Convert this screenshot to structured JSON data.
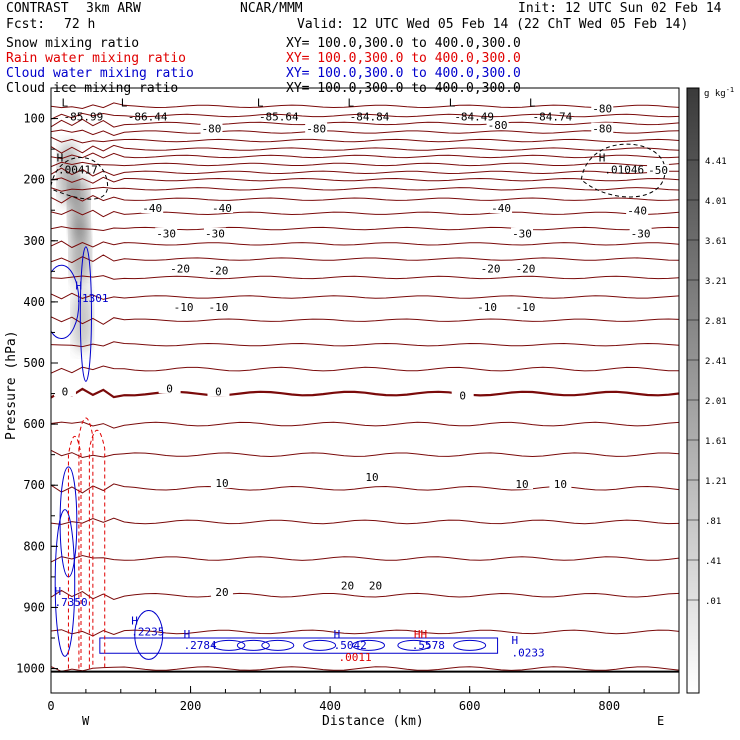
{
  "header": {
    "project": "CONTRAST",
    "model": "3km ARW",
    "center": "NCAR/MMM",
    "init": "Init: 12 UTC Sun 02 Feb 14",
    "fcst_label": "Fcst:",
    "fcst_value": "72 h",
    "valid": "Valid: 12 UTC Wed 05 Feb 14 (22 ChT Wed 05 Feb 14)"
  },
  "fields": [
    {
      "name": "Snow mixing ratio",
      "xy": "XY= 100.0,300.0 to 400.0,300.0",
      "color": "#000000"
    },
    {
      "name": "Rain water mixing ratio",
      "xy": "XY= 100.0,300.0 to 400.0,300.0",
      "color": "#e00000"
    },
    {
      "name": "Cloud water mixing ratio",
      "xy": "XY= 100.0,300.0 to 400.0,300.0",
      "color": "#0000cc"
    },
    {
      "name": "Cloud ice mixing ratio",
      "xy": "XY= 100.0,300.0 to 400.0,300.0",
      "color": "#000000"
    }
  ],
  "chart_data": {
    "type": "cross-section contour",
    "xlabel": "Distance (km)",
    "ylabel": "Pressure (hPa)",
    "xlim": [
      0,
      900
    ],
    "ylim": [
      1040,
      50
    ],
    "xticks": [
      0,
      200,
      400,
      600,
      800
    ],
    "yticks": [
      100,
      200,
      300,
      400,
      500,
      600,
      700,
      800,
      900,
      1000
    ],
    "x_end_labels": {
      "left": "W",
      "right": "E"
    },
    "temperature_labels": [
      {
        "x": 230,
        "p": 118,
        "text": "-80"
      },
      {
        "x": 380,
        "p": 118,
        "text": "-80"
      },
      {
        "x": 640,
        "p": 112,
        "text": "-80"
      },
      {
        "x": 790,
        "p": 85,
        "text": "-80"
      },
      {
        "x": 790,
        "p": 118,
        "text": "-80"
      },
      {
        "x": 870,
        "p": 186,
        "text": "-50"
      },
      {
        "x": 145,
        "p": 248,
        "text": "-40"
      },
      {
        "x": 245,
        "p": 248,
        "text": "-40"
      },
      {
        "x": 645,
        "p": 248,
        "text": "-40"
      },
      {
        "x": 840,
        "p": 252,
        "text": "-40"
      },
      {
        "x": 165,
        "p": 290,
        "text": "-30"
      },
      {
        "x": 235,
        "p": 290,
        "text": "-30"
      },
      {
        "x": 675,
        "p": 290,
        "text": "-30"
      },
      {
        "x": 845,
        "p": 290,
        "text": "-30"
      },
      {
        "x": 185,
        "p": 347,
        "text": "-20"
      },
      {
        "x": 240,
        "p": 350,
        "text": "-20"
      },
      {
        "x": 630,
        "p": 347,
        "text": "-20"
      },
      {
        "x": 680,
        "p": 347,
        "text": "-20"
      },
      {
        "x": 190,
        "p": 410,
        "text": "-10"
      },
      {
        "x": 240,
        "p": 410,
        "text": "-10"
      },
      {
        "x": 625,
        "p": 410,
        "text": "-10"
      },
      {
        "x": 680,
        "p": 410,
        "text": "-10"
      },
      {
        "x": 20,
        "p": 548,
        "text": "0"
      },
      {
        "x": 170,
        "p": 543,
        "text": "0"
      },
      {
        "x": 240,
        "p": 548,
        "text": "0"
      },
      {
        "x": 590,
        "p": 555,
        "text": "0"
      },
      {
        "x": 245,
        "p": 698,
        "text": "10"
      },
      {
        "x": 460,
        "p": 688,
        "text": "10"
      },
      {
        "x": 675,
        "p": 700,
        "text": "10"
      },
      {
        "x": 730,
        "p": 700,
        "text": "10"
      },
      {
        "x": 245,
        "p": 876,
        "text": "20"
      },
      {
        "x": 425,
        "p": 866,
        "text": "20"
      },
      {
        "x": 465,
        "p": 866,
        "text": "20"
      }
    ],
    "extrema_labels": [
      {
        "x": 15,
        "p": 80,
        "text": "L",
        "color": "#000000"
      },
      {
        "x": 18,
        "p": 103,
        "text": "-85.99",
        "color": "#000000"
      },
      {
        "x": 100,
        "p": 80,
        "text": "L",
        "color": "#000000"
      },
      {
        "x": 110,
        "p": 103,
        "text": "-86.44",
        "color": "#000000"
      },
      {
        "x": 295,
        "p": 80,
        "text": "L",
        "color": "#000000"
      },
      {
        "x": 298,
        "p": 103,
        "text": "-85.64",
        "color": "#000000"
      },
      {
        "x": 425,
        "p": 80,
        "text": "L",
        "color": "#000000"
      },
      {
        "x": 428,
        "p": 103,
        "text": "-84.84",
        "color": "#000000"
      },
      {
        "x": 570,
        "p": 80,
        "text": "L",
        "color": "#000000"
      },
      {
        "x": 578,
        "p": 103,
        "text": "-84.49",
        "color": "#000000"
      },
      {
        "x": 685,
        "p": 80,
        "text": "L",
        "color": "#000000"
      },
      {
        "x": 690,
        "p": 103,
        "text": "-84.74",
        "color": "#000000"
      },
      {
        "x": 8,
        "p": 170,
        "text": "H",
        "color": "#000000"
      },
      {
        "x": 10,
        "p": 190,
        "text": ".00417",
        "color": "#000000"
      },
      {
        "x": 785,
        "p": 170,
        "text": "H",
        "color": "#000000"
      },
      {
        "x": 793,
        "p": 190,
        "text": ".01046",
        "color": "#000000"
      },
      {
        "x": 35,
        "p": 380,
        "text": "H",
        "color": "#0000cc"
      },
      {
        "x": 35,
        "p": 400,
        "text": ".1301",
        "color": "#0000cc"
      },
      {
        "x": 5,
        "p": 880,
        "text": "H",
        "color": "#0000cc"
      },
      {
        "x": 5,
        "p": 898,
        "text": ".7350",
        "color": "#0000cc"
      },
      {
        "x": 115,
        "p": 928,
        "text": "H",
        "color": "#0000cc"
      },
      {
        "x": 115,
        "p": 946,
        "text": ".2235",
        "color": "#0000cc"
      },
      {
        "x": 190,
        "p": 950,
        "text": "H",
        "color": "#0000cc"
      },
      {
        "x": 190,
        "p": 968,
        "text": ".2784",
        "color": "#0000cc"
      },
      {
        "x": 405,
        "p": 950,
        "text": "H",
        "color": "#0000cc"
      },
      {
        "x": 405,
        "p": 968,
        "text": ".5042",
        "color": "#0000cc"
      },
      {
        "x": 412,
        "p": 988,
        "text": ".0011",
        "color": "#e00000"
      },
      {
        "x": 520,
        "p": 950,
        "text": "HH",
        "color": "#e00000"
      },
      {
        "x": 517,
        "p": 968,
        "text": ".5578",
        "color": "#0000cc"
      },
      {
        "x": 660,
        "p": 960,
        "text": "H",
        "color": "#0000cc"
      },
      {
        "x": 660,
        "p": 980,
        "text": ".0233",
        "color": "#0000cc"
      }
    ],
    "snow_shading": [
      {
        "x": 25,
        "p": 190,
        "intensity": 0.45
      },
      {
        "x": 40,
        "p": 245,
        "intensity": 0.55
      },
      {
        "x": 42,
        "p": 320,
        "intensity": 0.5
      },
      {
        "x": 45,
        "p": 430,
        "intensity": 0.35
      }
    ],
    "colorbar": {
      "unit": "g kg",
      "unit_exp": "-1",
      "labels": [
        "4.41",
        "4.01",
        "3.61",
        "3.21",
        "2.81",
        "2.41",
        "2.01",
        "1.61",
        "1.21",
        ".81",
        ".41",
        ".01"
      ]
    }
  }
}
